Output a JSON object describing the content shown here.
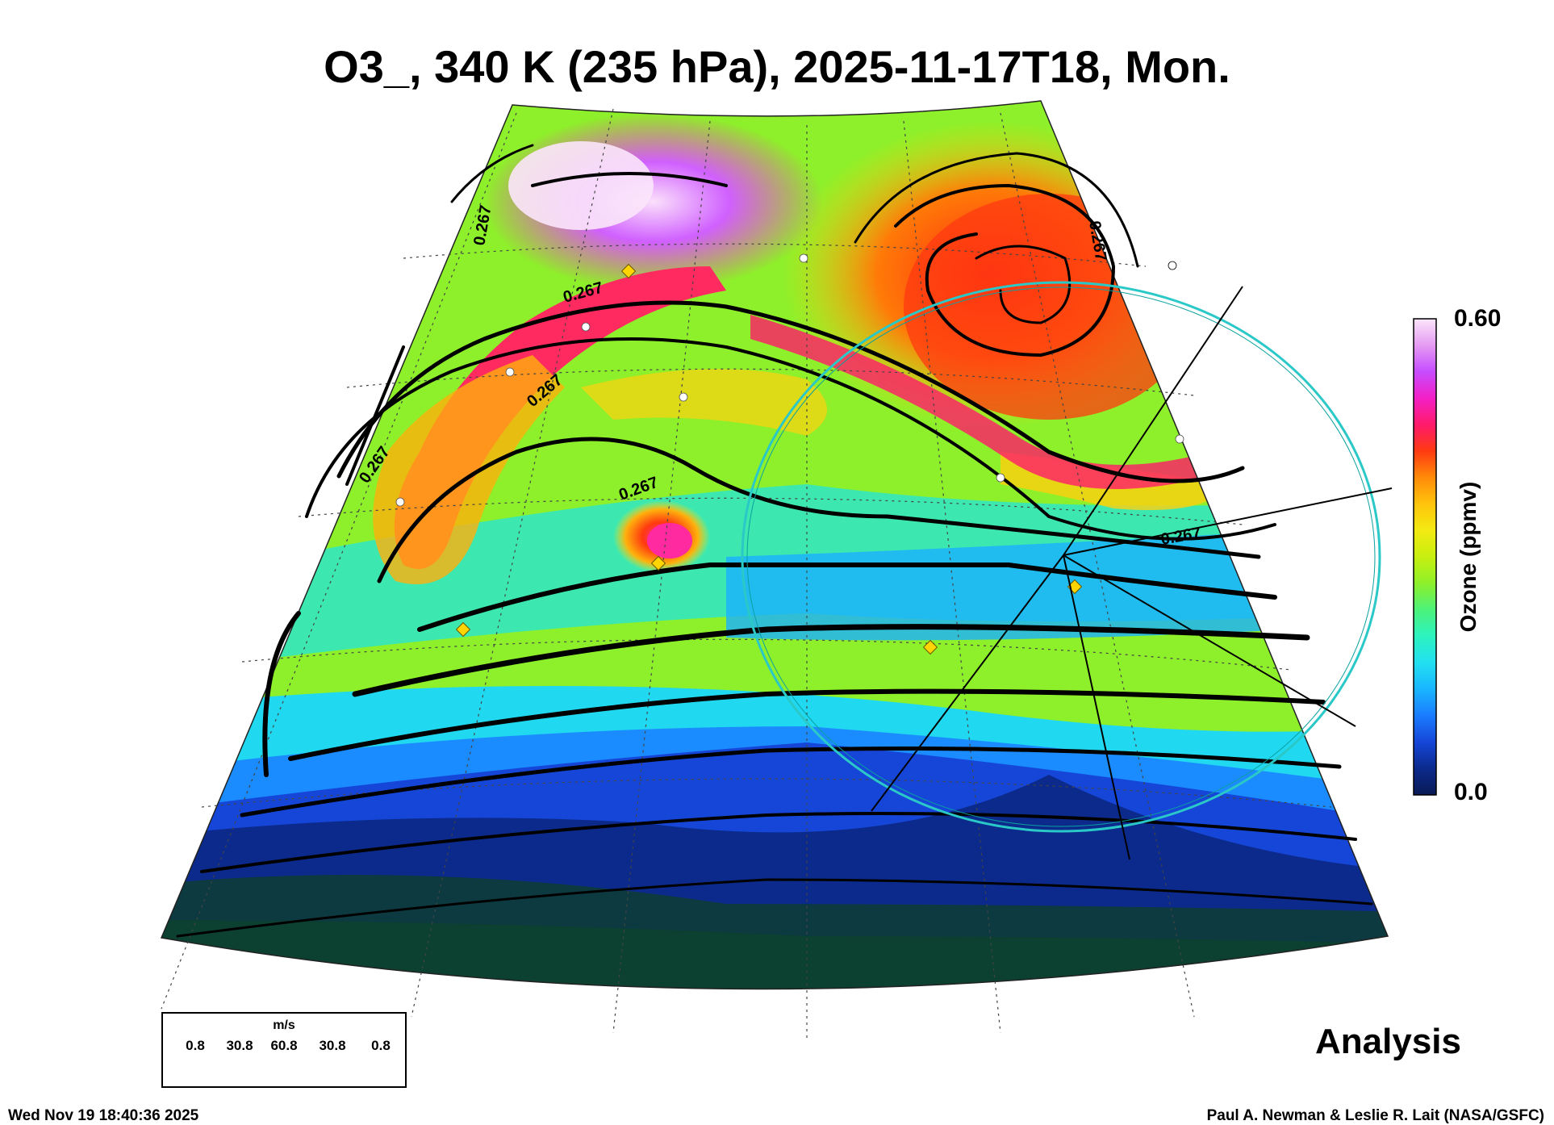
{
  "header": {
    "title": "O3_, 340 K (235 hPa), 2025-11-17T18, Mon."
  },
  "colorbar": {
    "max_label": "0.60",
    "min_label": "0.0",
    "title": "Ozone (ppmv)",
    "colors": [
      "#0a1a55",
      "#0b2a8c",
      "#1546d8",
      "#1a7cff",
      "#19b6ff",
      "#22e0f0",
      "#2cf3c0",
      "#4cf27a",
      "#8ef02a",
      "#c8ef10",
      "#f3ea12",
      "#ffc40c",
      "#ff8a08",
      "#ff3a12",
      "#ff1a6a",
      "#f320c6",
      "#c64cff",
      "#e59bf2",
      "#fbe6fb"
    ]
  },
  "contour_label": "0.267",
  "contour_labels": [
    "0.267",
    "0.267",
    "0.267",
    "0.267",
    "0.267",
    "0.267",
    "0.267"
  ],
  "wind_legend": {
    "unit": "m/s",
    "values": [
      "0.8",
      "30.8",
      "60.8",
      "30.8",
      "0.8"
    ]
  },
  "analysis_label": "Analysis",
  "footer": {
    "timestamp": "Wed Nov 19 18:40:36 2025",
    "credit": "Paul A. Newman & Leslie R. Lait (NASA/GSFC)"
  }
}
